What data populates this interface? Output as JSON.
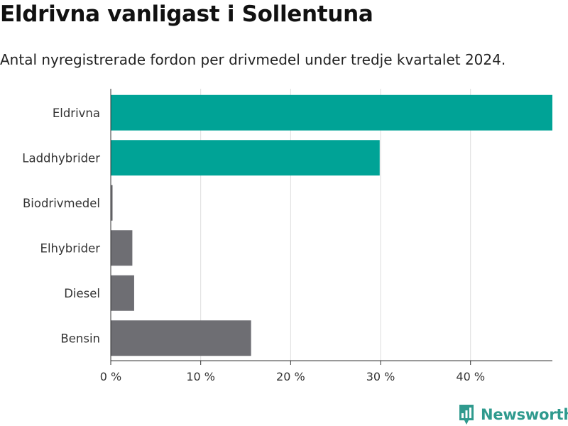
{
  "title": "Eldrivna vanligast i Sollentuna",
  "subtitle": "Antal nyregistrerade fordon per drivmedel under tredje kvartalet 2024.",
  "logo": {
    "text": "Newsworthy",
    "color": "#2f9a8e"
  },
  "colors": {
    "highlight": "#00a396",
    "other": "#6e6e73",
    "grid": "#dddddd",
    "axis": "#333333"
  },
  "chart_data": {
    "type": "bar",
    "orientation": "horizontal",
    "categories": [
      "Eldrivna",
      "Laddhybrider",
      "Biodrivmedel",
      "Elhybrider",
      "Diesel",
      "Bensin"
    ],
    "values": [
      49.1,
      29.9,
      0.2,
      2.4,
      2.6,
      15.6
    ],
    "highlighted": [
      true,
      true,
      false,
      false,
      false,
      false
    ],
    "xlim": [
      0,
      49.1
    ],
    "xticks": [
      0,
      10,
      20,
      30,
      40
    ],
    "xtick_labels": [
      "0 %",
      "10 %",
      "20 %",
      "30 %",
      "40 %"
    ],
    "xlabel": "",
    "ylabel": ""
  }
}
